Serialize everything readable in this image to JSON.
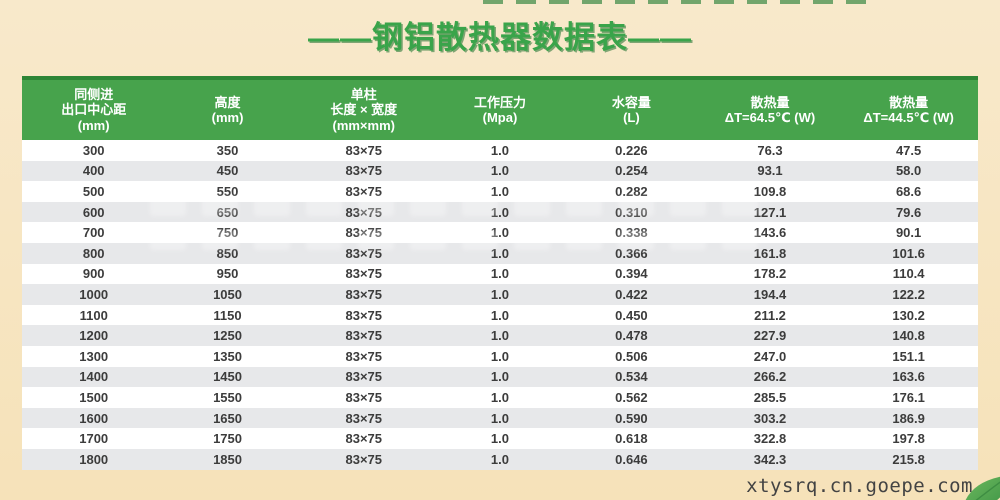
{
  "page": {
    "title": "——钢铝散热器数据表——",
    "footer_url": "xtysrq.cn.goepe.com"
  },
  "colors": {
    "bg-top": "#f8e9cb",
    "bg-bottom": "#f6e2b9",
    "title-green": "#3aa44a",
    "title-shadow": "#2a8038",
    "header-green": "#47a34c",
    "header-border": "#2e8536",
    "row-alt": "#e7e8ea",
    "text-dark": "#3c3c3c",
    "footer-color": "#434343",
    "leaf-green": "#4ba14b"
  },
  "table": {
    "headers": [
      {
        "lines": [
          "同侧进",
          "出口中心距",
          "(mm)"
        ]
      },
      {
        "lines": [
          "高度",
          "(mm)"
        ]
      },
      {
        "lines": [
          "单柱",
          "长度 × 宽度",
          "(mm×mm)"
        ]
      },
      {
        "lines": [
          "工作压力",
          "(Mpa)"
        ]
      },
      {
        "lines": [
          "水容量",
          "(L)"
        ]
      },
      {
        "lines": [
          "散热量",
          "ΔT=64.5℃ (W)"
        ]
      },
      {
        "lines": [
          "散热量",
          "ΔT=44.5℃ (W)"
        ]
      }
    ],
    "rows": [
      [
        "300",
        "350",
        "83×75",
        "1.0",
        "0.226",
        "76.3",
        "47.5"
      ],
      [
        "400",
        "450",
        "83×75",
        "1.0",
        "0.254",
        "93.1",
        "58.0"
      ],
      [
        "500",
        "550",
        "83×75",
        "1.0",
        "0.282",
        "109.8",
        "68.6"
      ],
      [
        "600",
        "650",
        "83×75",
        "1.0",
        "0.310",
        "127.1",
        "79.6"
      ],
      [
        "700",
        "750",
        "83×75",
        "1.0",
        "0.338",
        "143.6",
        "90.1"
      ],
      [
        "800",
        "850",
        "83×75",
        "1.0",
        "0.366",
        "161.8",
        "101.6"
      ],
      [
        "900",
        "950",
        "83×75",
        "1.0",
        "0.394",
        "178.2",
        "110.4"
      ],
      [
        "1000",
        "1050",
        "83×75",
        "1.0",
        "0.422",
        "194.4",
        "122.2"
      ],
      [
        "1100",
        "1150",
        "83×75",
        "1.0",
        "0.450",
        "211.2",
        "130.2"
      ],
      [
        "1200",
        "1250",
        "83×75",
        "1.0",
        "0.478",
        "227.9",
        "140.8"
      ],
      [
        "1300",
        "1350",
        "83×75",
        "1.0",
        "0.506",
        "247.0",
        "151.1"
      ],
      [
        "1400",
        "1450",
        "83×75",
        "1.0",
        "0.534",
        "266.2",
        "163.6"
      ],
      [
        "1500",
        "1550",
        "83×75",
        "1.0",
        "0.562",
        "285.5",
        "176.1"
      ],
      [
        "1600",
        "1650",
        "83×75",
        "1.0",
        "0.590",
        "303.2",
        "186.9"
      ],
      [
        "1700",
        "1750",
        "83×75",
        "1.0",
        "0.618",
        "322.8",
        "197.8"
      ],
      [
        "1800",
        "1850",
        "83×75",
        "1.0",
        "0.646",
        "342.3",
        "215.8"
      ]
    ]
  }
}
